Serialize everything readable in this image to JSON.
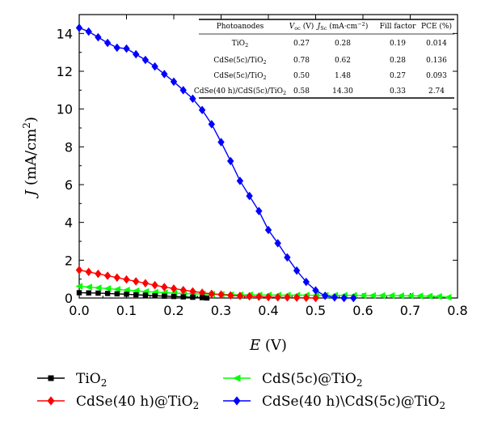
{
  "chart_data": {
    "type": "line",
    "xlabel_main": "E",
    "xlabel_unit": "(V)",
    "ylabel_main": "J",
    "ylabel_unit_pre": "(mA/cm",
    "ylabel_unit_sup": "2",
    "ylabel_unit_post": ")",
    "xlim": [
      0.0,
      0.8
    ],
    "ylim": [
      0,
      15
    ],
    "xticks": [
      "0.0",
      "0.1",
      "0.2",
      "0.3",
      "0.4",
      "0.5",
      "0.6",
      "0.7",
      "0.8"
    ],
    "yticks": [
      "0",
      "2",
      "4",
      "6",
      "8",
      "10",
      "12",
      "14"
    ],
    "grid": false,
    "legend_position": "bottom",
    "series": [
      {
        "name_base": "TiO",
        "name_sub": "2",
        "name_rest": "",
        "color": "#000000",
        "marker": "square",
        "x": [
          0.0,
          0.02,
          0.04,
          0.06,
          0.08,
          0.1,
          0.12,
          0.14,
          0.16,
          0.18,
          0.2,
          0.22,
          0.24,
          0.26,
          0.27
        ],
        "y": [
          0.28,
          0.27,
          0.26,
          0.24,
          0.22,
          0.2,
          0.17,
          0.15,
          0.12,
          0.1,
          0.08,
          0.06,
          0.04,
          0.02,
          0.0
        ]
      },
      {
        "name_base": "CdSe(40 h)@TiO",
        "name_sub": "2",
        "name_rest": "",
        "color": "#ff0000",
        "marker": "diamond",
        "x": [
          0.0,
          0.02,
          0.04,
          0.06,
          0.08,
          0.1,
          0.12,
          0.14,
          0.16,
          0.18,
          0.2,
          0.22,
          0.24,
          0.26,
          0.28,
          0.3,
          0.32,
          0.34,
          0.36,
          0.38,
          0.4,
          0.42,
          0.44,
          0.46,
          0.48,
          0.5
        ],
        "y": [
          1.48,
          1.38,
          1.28,
          1.18,
          1.08,
          0.98,
          0.88,
          0.78,
          0.68,
          0.58,
          0.5,
          0.42,
          0.35,
          0.28,
          0.22,
          0.18,
          0.14,
          0.11,
          0.09,
          0.07,
          0.05,
          0.04,
          0.03,
          0.02,
          0.01,
          0.0
        ]
      },
      {
        "name_base": "CdS(5c)@TiO",
        "name_sub": "2",
        "name_rest": "",
        "color": "#00ff00",
        "marker": "triangle-left",
        "x": [
          0.0,
          0.02,
          0.04,
          0.06,
          0.08,
          0.1,
          0.12,
          0.14,
          0.16,
          0.18,
          0.2,
          0.22,
          0.24,
          0.26,
          0.28,
          0.3,
          0.32,
          0.34,
          0.36,
          0.38,
          0.4,
          0.42,
          0.44,
          0.46,
          0.48,
          0.5,
          0.52,
          0.54,
          0.56,
          0.58,
          0.6,
          0.62,
          0.64,
          0.66,
          0.68,
          0.7,
          0.72,
          0.74,
          0.76,
          0.78
        ],
        "y": [
          0.62,
          0.58,
          0.54,
          0.5,
          0.46,
          0.42,
          0.38,
          0.34,
          0.31,
          0.28,
          0.26,
          0.24,
          0.22,
          0.21,
          0.2,
          0.19,
          0.18,
          0.17,
          0.17,
          0.16,
          0.16,
          0.15,
          0.15,
          0.15,
          0.15,
          0.14,
          0.14,
          0.14,
          0.14,
          0.14,
          0.13,
          0.13,
          0.13,
          0.13,
          0.12,
          0.12,
          0.11,
          0.1,
          0.08,
          0.04
        ]
      },
      {
        "name_base": "CdSe(40 h)\\CdS(5c)@TiO",
        "name_sub": "2",
        "name_rest": "",
        "color": "#0000ff",
        "marker": "diamond",
        "x": [
          0.0,
          0.02,
          0.04,
          0.06,
          0.08,
          0.1,
          0.12,
          0.14,
          0.16,
          0.18,
          0.2,
          0.22,
          0.24,
          0.26,
          0.28,
          0.3,
          0.32,
          0.34,
          0.36,
          0.38,
          0.4,
          0.42,
          0.44,
          0.46,
          0.48,
          0.5,
          0.52,
          0.54,
          0.56,
          0.58
        ],
        "y": [
          14.3,
          14.1,
          13.8,
          13.5,
          13.25,
          13.2,
          12.9,
          12.6,
          12.25,
          11.85,
          11.45,
          11.0,
          10.55,
          9.95,
          9.2,
          8.25,
          7.25,
          6.2,
          5.4,
          4.6,
          3.6,
          2.9,
          2.15,
          1.45,
          0.85,
          0.4,
          0.12,
          0.03,
          0.0,
          0.0
        ]
      }
    ]
  },
  "table": {
    "header": [
      {
        "base": "Photoanodes",
        "sub": "",
        "rest": ""
      },
      {
        "base": "V",
        "sub": "oc",
        "rest": " (V)"
      },
      {
        "base": "J",
        "sub": "Sc",
        "rest": " (mA·cm",
        "sup": "−2",
        "rest2": ")"
      },
      {
        "base": "Fill factor",
        "sub": "",
        "rest": ""
      },
      {
        "base": "PCE (%)",
        "sub": "",
        "rest": ""
      }
    ],
    "rows": [
      {
        "anode_base": "TiO",
        "anode_sub": "2",
        "anode_rest": "",
        "voc": "0.27",
        "jsc": "0.28",
        "ff": "0.19",
        "pce": "0.014"
      },
      {
        "anode_base": "CdSe(5c)/TiO",
        "anode_sub": "2",
        "anode_rest": "",
        "voc": "0.78",
        "jsc": "0.62",
        "ff": "0.28",
        "pce": "0.136"
      },
      {
        "anode_base": "CdSe(5c)/TiO",
        "anode_sub": "2",
        "anode_rest": "",
        "voc": "0.50",
        "jsc": "1.48",
        "ff": "0.27",
        "pce": "0.093"
      },
      {
        "anode_base": "CdSe(40 h)/CdS(5c)/TiO",
        "anode_sub": "2",
        "anode_rest": "",
        "voc": "0.58",
        "jsc": "14.30",
        "ff": "0.33",
        "pce": "2.74"
      }
    ]
  }
}
